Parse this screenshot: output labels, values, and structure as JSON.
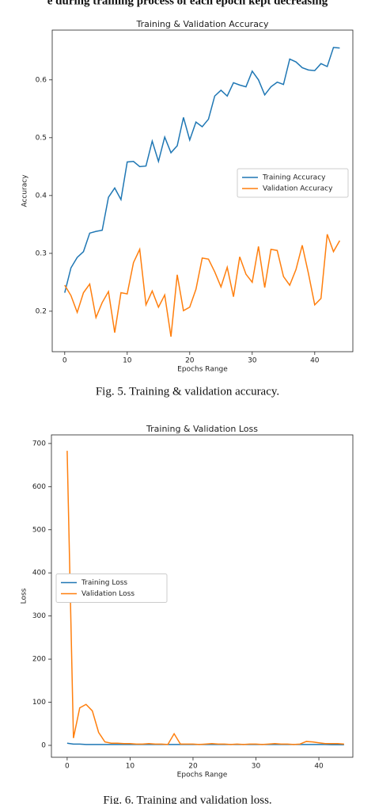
{
  "header_text": "e during training process of each epoch kept decreasing",
  "chart_data": [
    {
      "type": "line",
      "title": "Training & Validation Accuracy",
      "xlabel": "Epochs Range",
      "ylabel": "Accuracy",
      "caption": "Fig. 5.    Training & validation accuracy.",
      "x": [
        0,
        1,
        2,
        3,
        4,
        5,
        6,
        7,
        8,
        9,
        10,
        11,
        12,
        13,
        14,
        15,
        16,
        17,
        18,
        19,
        20,
        21,
        22,
        23,
        24,
        25,
        26,
        27,
        28,
        29,
        30,
        31,
        32,
        33,
        34,
        35,
        36,
        37,
        38,
        39,
        40,
        41,
        42,
        43,
        44
      ],
      "series": [
        {
          "name": "Training Accuracy",
          "color": "#1f77b4",
          "values": [
            0.232,
            0.275,
            0.293,
            0.303,
            0.335,
            0.338,
            0.34,
            0.397,
            0.413,
            0.393,
            0.458,
            0.459,
            0.45,
            0.451,
            0.494,
            0.459,
            0.501,
            0.474,
            0.486,
            0.535,
            0.496,
            0.527,
            0.519,
            0.532,
            0.572,
            0.582,
            0.572,
            0.595,
            0.591,
            0.588,
            0.615,
            0.6,
            0.574,
            0.588,
            0.596,
            0.592,
            0.636,
            0.631,
            0.621,
            0.617,
            0.616,
            0.628,
            0.623,
            0.656,
            0.655
          ]
        },
        {
          "name": "Validation Accuracy",
          "color": "#ff7f0e",
          "values": [
            0.245,
            0.227,
            0.198,
            0.232,
            0.247,
            0.189,
            0.215,
            0.234,
            0.163,
            0.232,
            0.23,
            0.284,
            0.307,
            0.211,
            0.235,
            0.207,
            0.228,
            0.156,
            0.263,
            0.201,
            0.207,
            0.238,
            0.292,
            0.29,
            0.268,
            0.242,
            0.276,
            0.225,
            0.294,
            0.264,
            0.25,
            0.312,
            0.241,
            0.307,
            0.305,
            0.26,
            0.245,
            0.272,
            0.314,
            0.265,
            0.211,
            0.222,
            0.333,
            0.303,
            0.322
          ]
        }
      ],
      "xlim": [
        -2.0,
        46.1
      ],
      "xticks": [
        0,
        10,
        20,
        30,
        40
      ],
      "ylim": [
        0.13,
        0.686
      ],
      "yticks": [
        0.2,
        0.3,
        0.4,
        0.5,
        0.6
      ],
      "legend": "center right"
    },
    {
      "type": "line",
      "title": "Training & Validation Loss",
      "xlabel": "Epochs Range",
      "ylabel": "Loss",
      "caption": "Fig. 6.    Training and validation loss.",
      "x": [
        0,
        1,
        2,
        3,
        4,
        5,
        6,
        7,
        8,
        9,
        10,
        11,
        12,
        13,
        14,
        15,
        16,
        17,
        18,
        19,
        20,
        21,
        22,
        23,
        24,
        25,
        26,
        27,
        28,
        29,
        30,
        31,
        32,
        33,
        34,
        35,
        36,
        37,
        38,
        39,
        40,
        41,
        42,
        43,
        44
      ],
      "series": [
        {
          "name": "Training Loss",
          "color": "#1f77b4",
          "values": [
            5,
            3,
            3,
            2,
            2,
            2,
            2,
            2,
            2,
            2,
            2,
            2,
            2,
            2,
            2,
            2,
            2,
            2,
            2,
            2,
            2,
            2,
            2,
            2,
            2,
            2,
            2,
            2,
            2,
            2,
            2,
            2,
            2,
            2,
            2,
            2,
            2,
            2,
            2,
            2,
            2,
            2,
            1.5,
            1.5,
            1.5
          ]
        },
        {
          "name": "Validation Loss",
          "color": "#ff7f0e",
          "values": [
            683,
            17,
            87,
            95,
            80,
            30,
            8,
            5,
            5,
            4,
            4,
            3,
            3,
            4,
            3,
            3,
            2,
            27,
            3,
            3,
            3,
            2,
            3,
            4,
            3,
            3,
            2,
            3,
            2,
            3,
            3,
            2,
            3,
            4,
            3,
            3,
            2,
            3,
            9,
            8,
            6,
            4,
            4,
            4,
            3
          ]
        }
      ],
      "xlim": [
        -2.5,
        45.4
      ],
      "xticks": [
        0,
        10,
        20,
        30,
        40
      ],
      "ylim": [
        -27.6,
        720
      ],
      "yticks": [
        0,
        100,
        200,
        300,
        400,
        500,
        600,
        700
      ],
      "legend": "center left"
    }
  ]
}
